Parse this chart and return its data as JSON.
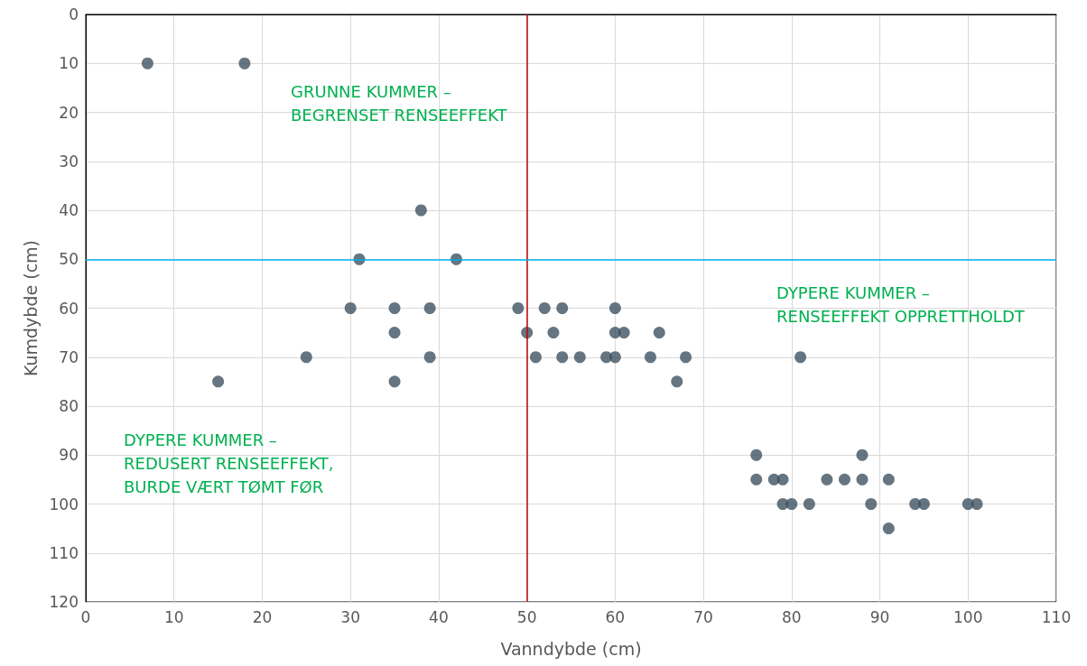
{
  "chart_data": {
    "type": "scatter",
    "xlabel": "Vanndybde (cm)",
    "ylabel": "Kumdybde (cm)",
    "x": [
      7,
      18,
      38,
      31,
      42,
      30,
      35,
      39,
      49,
      52,
      54,
      60,
      35,
      50,
      53,
      60,
      61,
      65,
      15,
      25,
      39,
      51,
      54,
      56,
      59,
      60,
      64,
      68,
      81,
      35,
      67,
      76,
      88,
      76,
      78,
      79,
      84,
      86,
      88,
      91,
      79,
      80,
      82,
      89,
      94,
      95,
      100,
      101,
      91
    ],
    "values": [
      10,
      10,
      40,
      50,
      50,
      60,
      60,
      60,
      60,
      60,
      60,
      60,
      65,
      65,
      65,
      65,
      65,
      65,
      75,
      70,
      70,
      70,
      70,
      70,
      70,
      70,
      70,
      70,
      70,
      75,
      75,
      90,
      90,
      95,
      95,
      95,
      95,
      95,
      95,
      95,
      100,
      100,
      100,
      100,
      100,
      100,
      100,
      100,
      105
    ],
    "color": "#3e5261",
    "marker": "circle",
    "xlim": [
      0,
      110
    ],
    "xticks": [
      0,
      10,
      20,
      30,
      40,
      50,
      60,
      70,
      80,
      90,
      100,
      110
    ],
    "ylim": [
      120,
      0
    ],
    "yticks": [
      0,
      10,
      20,
      30,
      40,
      50,
      60,
      70,
      80,
      90,
      100,
      110,
      120
    ],
    "grid": true,
    "ref_lines": [
      {
        "axis": "x",
        "value": 50,
        "color": "#c00000"
      },
      {
        "axis": "y",
        "value": 50,
        "color": "#00b0f0"
      }
    ],
    "annotations": [
      "GRUNNE KUMMER –\nBEGRENSET RENSEEFFEKT",
      "DYPERE KUMMER –\nRENSEEFFEKT OPPRETTHOLDT",
      "DYPERE KUMMER –\nREDUSERT RENSEEFFEKT,\nBURDE VÆRT TØMT FØR"
    ]
  }
}
